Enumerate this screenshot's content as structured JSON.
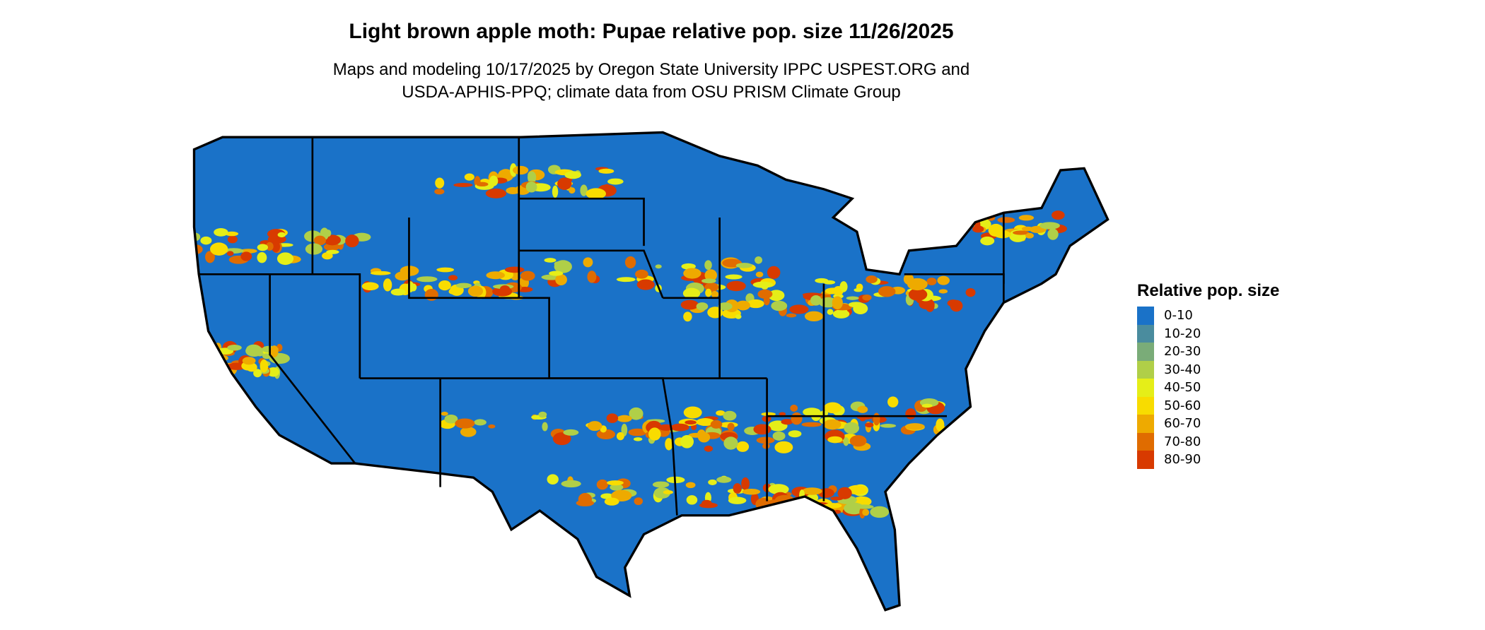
{
  "chart_data": {
    "type": "heatmap",
    "title": "Light brown apple moth: Pupae relative pop. size 11/26/2025",
    "subtitle": [
      "Maps and modeling 10/17/2025 by Oregon State University IPPC USPEST.ORG and",
      "USDA-APHIS-PPQ; climate data from OSU PRISM Climate Group"
    ],
    "region": "Contiguous United States",
    "legend": {
      "title": "Relative pop. size",
      "placement": "right",
      "items": [
        {
          "label": "0-10",
          "color": "#1a72c8"
        },
        {
          "label": "10-20",
          "color": "#4a8c9e"
        },
        {
          "label": "20-30",
          "color": "#7aac78"
        },
        {
          "label": "30-40",
          "color": "#b0cf48"
        },
        {
          "label": "40-50",
          "color": "#e5ee18"
        },
        {
          "label": "50-60",
          "color": "#f8dc00"
        },
        {
          "label": "60-70",
          "color": "#eeaa00"
        },
        {
          "label": "70-80",
          "color": "#e06c00"
        },
        {
          "label": "80-90",
          "color": "#d83a00"
        }
      ]
    }
  }
}
